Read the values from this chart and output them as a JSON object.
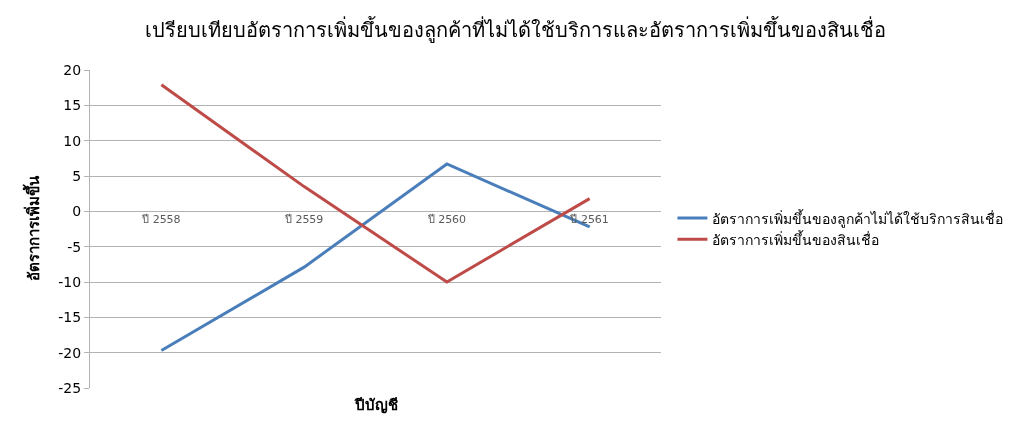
{
  "chart_data": {
    "type": "line",
    "title": "เปรียบเทียบอัตราการเพิ่มขึ้นของลูกค้าที่ไม่ได้ใช้บริการและอัตราการเพิ่มขึ้นของสินเชื่อ",
    "xlabel": "ปีบัญชี",
    "ylabel": "อัตราการเพิ่มขึ้น",
    "categories": [
      "ปี 2558",
      "ปี 2559",
      "ปี 2560",
      "ปี 2561"
    ],
    "series": [
      {
        "name": "อัตราการเพิ่มขึ้นของลูกค้าไม่ได้ใช้บริการสินเชื่อ",
        "color": "#4a7ebb",
        "values": [
          -19.7,
          -7.9,
          6.7,
          -2.2
        ]
      },
      {
        "name": "อัตราการเพิ่มขึ้นของสินเชื่อ",
        "color": "#be4b48",
        "values": [
          17.9,
          3.5,
          -10,
          1.8
        ]
      }
    ],
    "ylim": [
      -25,
      20
    ],
    "yticks": [
      -25,
      -20,
      -15,
      -10,
      -5,
      0,
      5,
      10,
      15,
      20
    ],
    "grid": "y",
    "legend": "right",
    "marker": "none",
    "line_style": "solid"
  }
}
